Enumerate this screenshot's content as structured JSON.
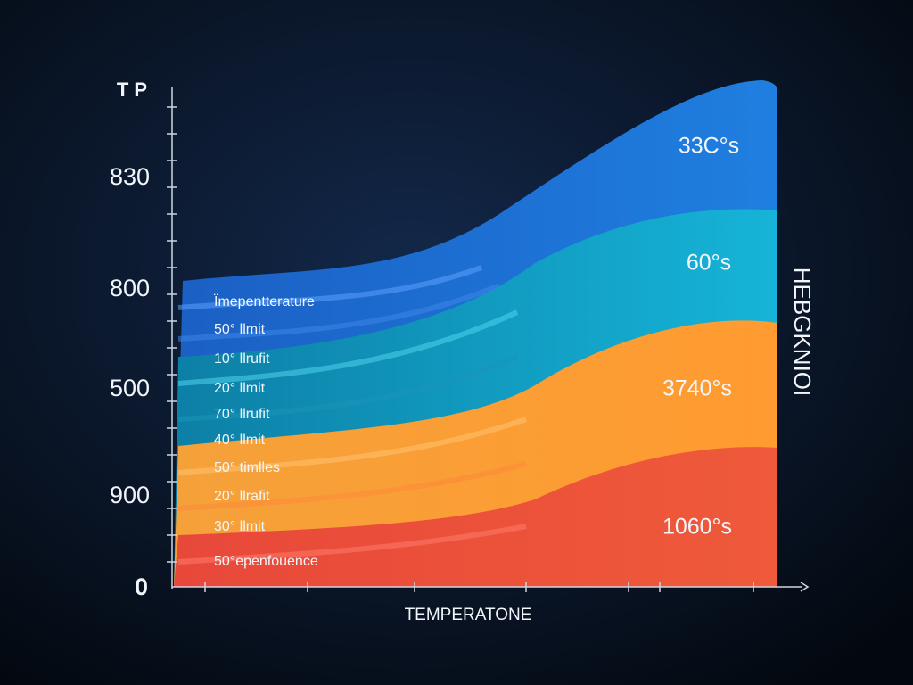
{
  "title": "T P",
  "y_labels": [
    "830",
    "800",
    "500",
    "900",
    "0"
  ],
  "band_labels": [
    "Ïmepentterature",
    "50° llmit",
    "10° llrufit",
    "20° llmit",
    "70° llrufit",
    "40° llmit",
    "50° timlles",
    "20° llrafit",
    "30° llmit",
    "50°epenfouence"
  ],
  "right_labels": [
    "33C°s",
    "60°s",
    "3740°s",
    "1060°s"
  ],
  "x_axis_label": "TEMPERATONE",
  "side_label": "HEBGKNIOI"
}
